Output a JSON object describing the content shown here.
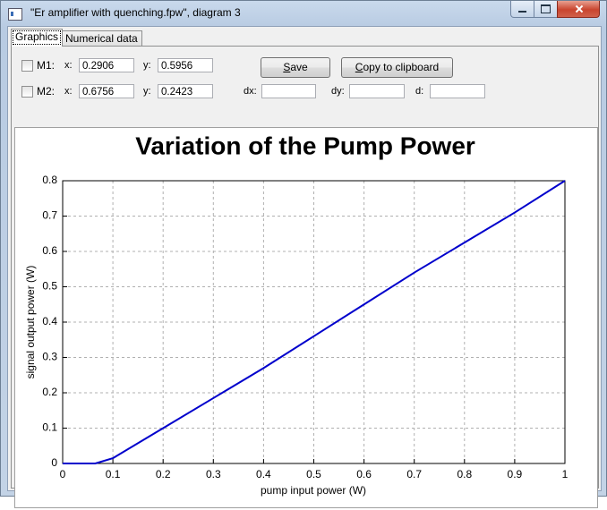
{
  "window": {
    "title": "\"Er amplifier with quenching.fpw\", diagram 3"
  },
  "tabs": [
    "Graphics",
    "Numerical data"
  ],
  "markers": [
    {
      "label": "M1:",
      "x_label": "x:",
      "x": "0.2906",
      "y_label": "y:",
      "y": "0.5956"
    },
    {
      "label": "M2:",
      "x_label": "x:",
      "x": "0.6756",
      "y_label": "y:",
      "y": "0.2423"
    }
  ],
  "buttons": [
    "Save",
    "Copy to clipboard"
  ],
  "delta_labels": [
    "dx:",
    "dy:",
    "d:"
  ],
  "chart_data": {
    "type": "line",
    "title": "Variation of the Pump Power",
    "x_label": "pump input power (W)",
    "y_label": "signal output power (W)",
    "x": [
      0,
      0.065,
      0.1,
      0.2,
      0.3,
      0.4,
      0.5,
      0.6,
      0.7,
      0.8,
      0.9,
      1
    ],
    "series": [
      {
        "color": "#0000cc",
        "values": [
          0,
          0,
          0.015,
          0.1,
          0.185,
          0.27,
          0.36,
          0.45,
          0.54,
          0.625,
          0.71,
          0.8
        ]
      }
    ],
    "xlim": [
      0,
      1
    ],
    "xticks": [
      0,
      0.1,
      0.2,
      0.3,
      0.4,
      0.5,
      0.6,
      0.7,
      0.8,
      0.9,
      1
    ],
    "ylim": [
      0,
      0.8
    ],
    "yticks": [
      0,
      0.1,
      0.2,
      0.3,
      0.4,
      0.5,
      0.6,
      0.7,
      0.8
    ],
    "grid": true
  }
}
